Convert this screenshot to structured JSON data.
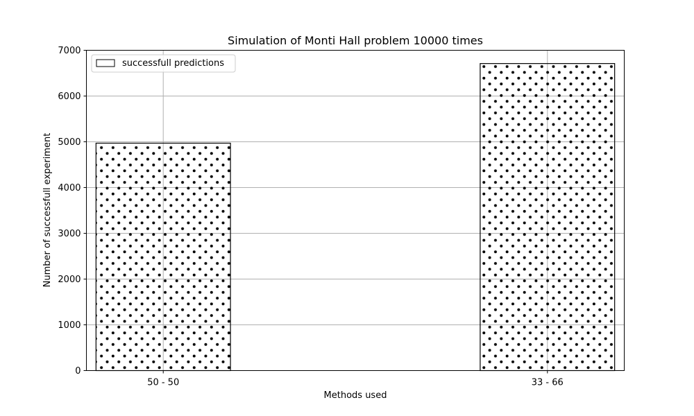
{
  "chart_data": {
    "type": "bar",
    "title": "Simulation of Monti Hall problem 10000 times",
    "xlabel": "Methods used",
    "ylabel": "Number of successfull experiment",
    "categories": [
      "50 - 50",
      "33 - 66"
    ],
    "series": [
      {
        "name": "successfull predictions",
        "values": [
          4970,
          6710
        ]
      }
    ],
    "ylim": [
      0,
      7000
    ],
    "yticks": [
      0,
      1000,
      2000,
      3000,
      4000,
      5000,
      6000,
      7000
    ],
    "grid": true,
    "legend_position": "top-left",
    "bar_fill": "dot-hatch",
    "colors": {
      "bar_edge": "#000000",
      "bar_dots": "#000000",
      "grid": "#b0b0b0",
      "background": "#ffffff"
    }
  }
}
